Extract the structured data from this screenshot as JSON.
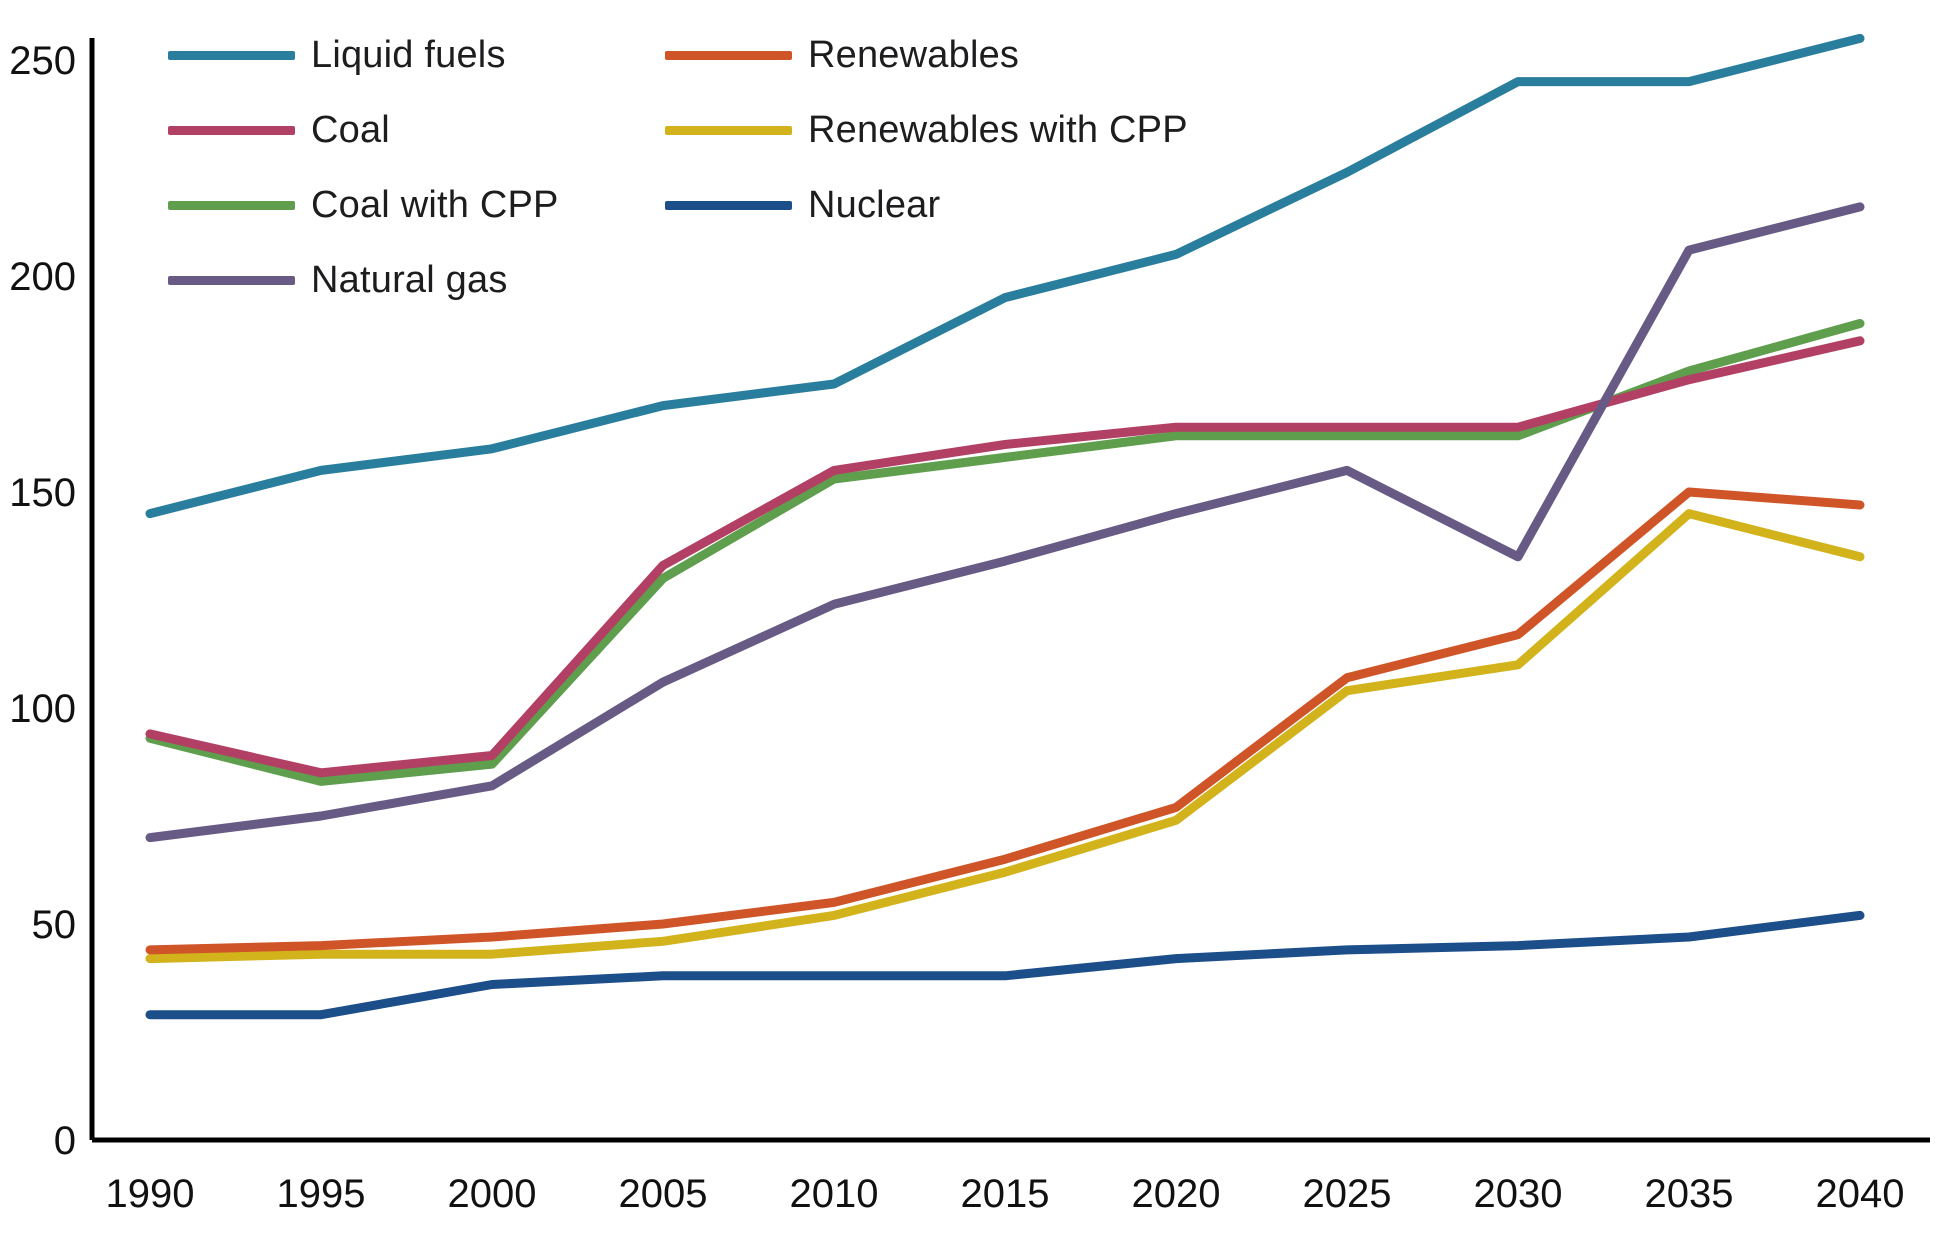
{
  "chart_data": {
    "type": "line",
    "title": "",
    "xlabel": "",
    "ylabel": "",
    "grid": false,
    "background": "#ffffff",
    "axis_color": "#000000",
    "text_color": "#1d1d1f",
    "x": [
      1990,
      1995,
      2000,
      2005,
      2010,
      2015,
      2020,
      2025,
      2030,
      2035,
      2040
    ],
    "x_tick_labels": [
      "1990",
      "1995",
      "2000",
      "2005",
      "2010",
      "2015",
      "2020",
      "2025",
      "2030",
      "2035",
      "2040"
    ],
    "y_ticks": [
      0,
      50,
      100,
      150,
      200,
      250
    ],
    "ylim": [
      0,
      257
    ],
    "legend_position": "top-left two-column overlay",
    "series": [
      {
        "name": "Liquid fuels",
        "color": "#2a7e9d",
        "values": [
          145,
          155,
          160,
          170,
          175,
          195,
          205,
          224,
          245,
          245,
          255
        ]
      },
      {
        "name": "Coal",
        "color": "#b24064",
        "values": [
          94,
          85,
          89,
          133,
          155,
          161,
          165,
          165,
          165,
          176,
          185
        ]
      },
      {
        "name": "Coal with CPP",
        "color": "#5f9e4c",
        "values": [
          93,
          83,
          87,
          130,
          153,
          158,
          163,
          163,
          163,
          178,
          189
        ]
      },
      {
        "name": "Natural gas",
        "color": "#675a84",
        "values": [
          70,
          75,
          82,
          106,
          124,
          134,
          145,
          155,
          135,
          206,
          216
        ]
      },
      {
        "name": "Renewables",
        "color": "#cf5427",
        "values": [
          44,
          45,
          47,
          50,
          55,
          65,
          77,
          107,
          117,
          150,
          147
        ]
      },
      {
        "name": "Renewables with CPP",
        "color": "#d2b31c",
        "values": [
          42,
          43,
          43,
          46,
          52,
          62,
          74,
          104,
          110,
          145,
          135
        ]
      },
      {
        "name": "Nuclear",
        "color": "#1c4e8a",
        "values": [
          29,
          29,
          36,
          38,
          38,
          38,
          42,
          44,
          45,
          47,
          52
        ]
      }
    ],
    "legend_columns": {
      "left": [
        0,
        1,
        2,
        3
      ],
      "right": [
        4,
        5,
        6
      ]
    }
  }
}
